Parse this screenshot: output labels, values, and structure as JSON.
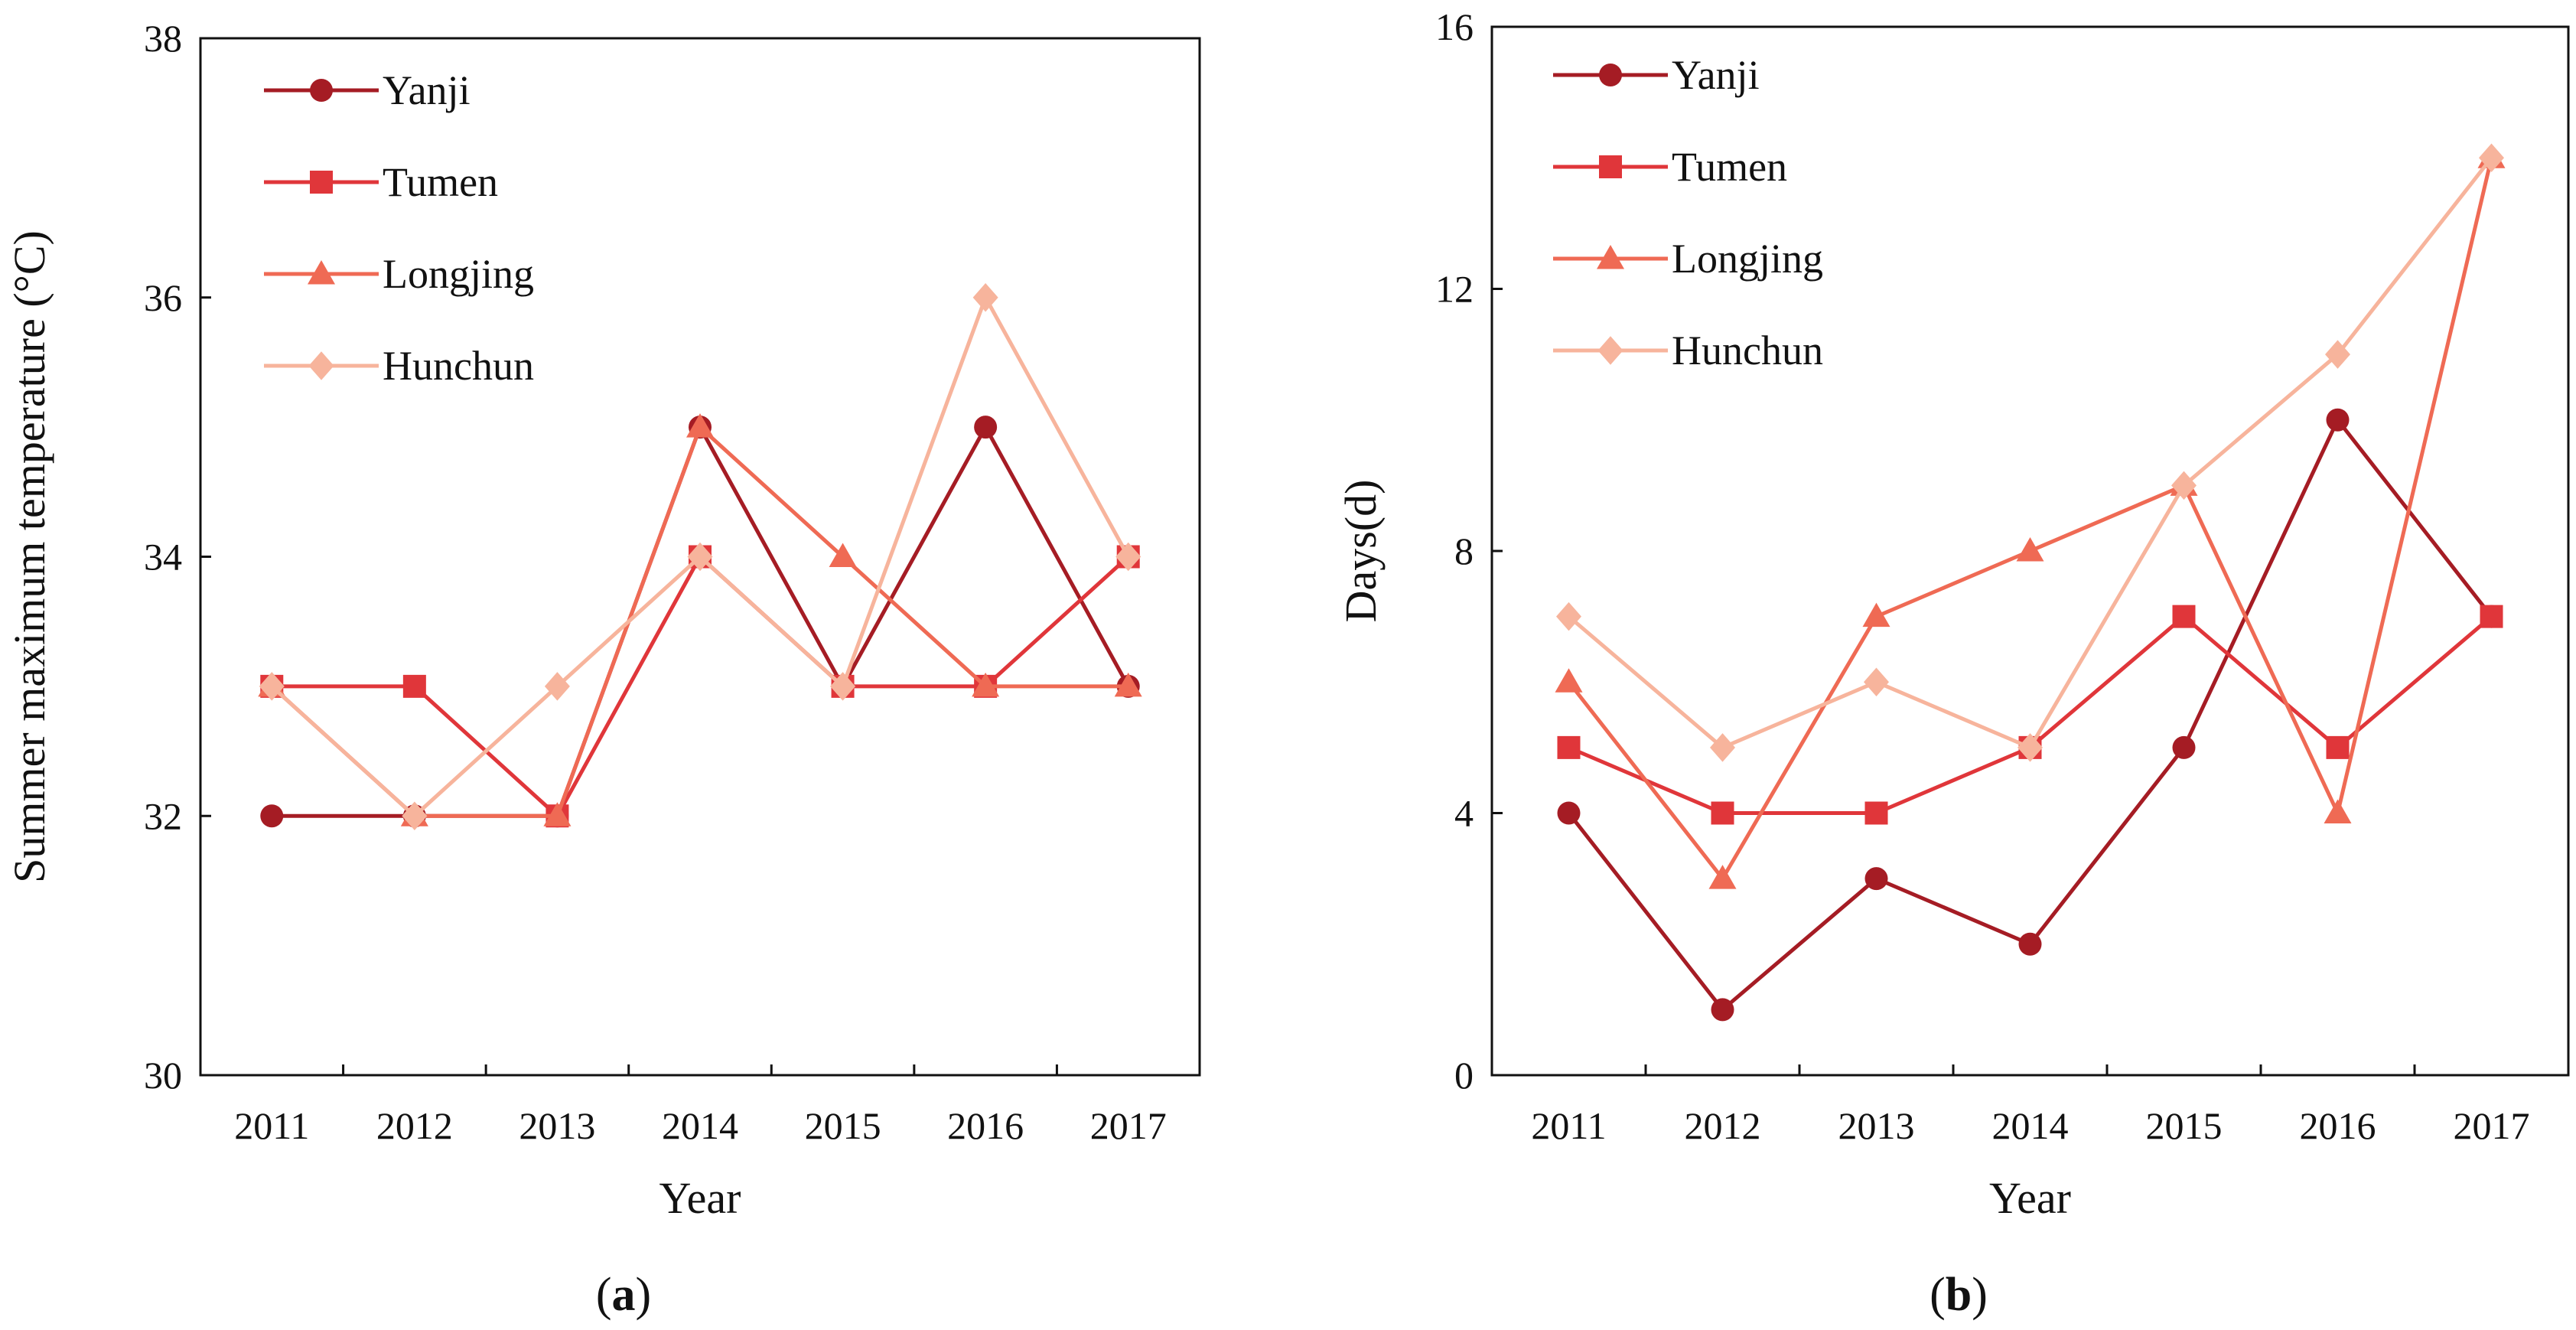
{
  "colors": {
    "Yanji": "#a51c24",
    "Tumen": "#e0363a",
    "Longjing": "#ef6a54",
    "Hunchun": "#f7b49c",
    "axis": "#111111"
  },
  "chart_data": [
    {
      "type": "line",
      "panel": "a",
      "caption": {
        "open": "(",
        "letter": "a",
        "close": ")"
      },
      "xlabel": "Year",
      "ylabel": "Summer maximum temperature (°C)",
      "ylim": [
        30,
        38
      ],
      "yticks": [
        30,
        32,
        34,
        36,
        38
      ],
      "categories": [
        "2011",
        "2012",
        "2013",
        "2014",
        "2015",
        "2016",
        "2017"
      ],
      "legend_position": "top-left",
      "series": [
        {
          "name": "Yanji",
          "marker": "circle",
          "values": [
            32,
            32,
            32,
            35,
            33,
            35,
            33
          ]
        },
        {
          "name": "Tumen",
          "marker": "square",
          "values": [
            33,
            33,
            32,
            34,
            33,
            33,
            34
          ]
        },
        {
          "name": "Longjing",
          "marker": "triangle",
          "values": [
            33,
            32,
            32,
            35,
            34,
            33,
            33
          ]
        },
        {
          "name": "Hunchun",
          "marker": "diamond",
          "values": [
            33,
            32,
            33,
            34,
            33,
            36,
            34
          ]
        }
      ]
    },
    {
      "type": "line",
      "panel": "b",
      "caption": {
        "open": "(",
        "letter": "b",
        "close": ")"
      },
      "xlabel": "Year",
      "ylabel": "Days(d)",
      "ylim": [
        0,
        16
      ],
      "yticks": [
        0,
        4,
        8,
        12,
        16
      ],
      "categories": [
        "2011",
        "2012",
        "2013",
        "2014",
        "2015",
        "2016",
        "2017"
      ],
      "legend_position": "top-left",
      "series": [
        {
          "name": "Yanji",
          "marker": "circle",
          "values": [
            4,
            1,
            3,
            2,
            5,
            10,
            7
          ]
        },
        {
          "name": "Tumen",
          "marker": "square",
          "values": [
            5,
            4,
            4,
            5,
            7,
            5,
            7
          ]
        },
        {
          "name": "Longjing",
          "marker": "triangle",
          "values": [
            6,
            3,
            7,
            8,
            9,
            4,
            14
          ]
        },
        {
          "name": "Hunchun",
          "marker": "diamond",
          "values": [
            7,
            5,
            6,
            5,
            9,
            11,
            14
          ]
        }
      ]
    }
  ]
}
